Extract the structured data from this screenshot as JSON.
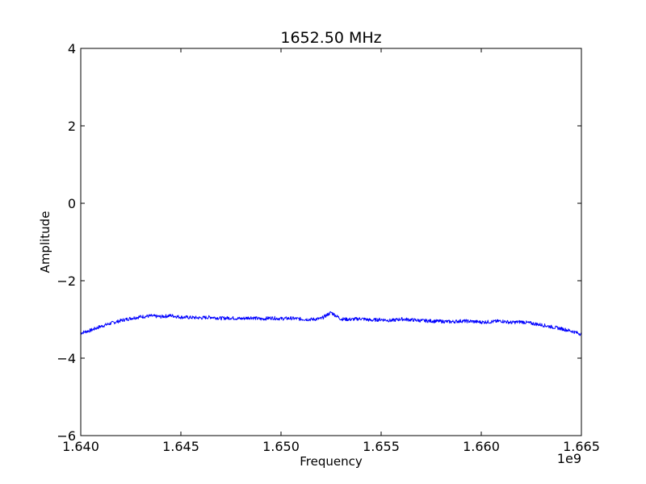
{
  "chart_data": {
    "type": "line",
    "title": "1652.50 MHz",
    "xlabel": "Frequency",
    "ylabel": "Amplitude",
    "x_offset_label": "1e9",
    "xlim": [
      1.64,
      1.665
    ],
    "ylim": [
      -6,
      4
    ],
    "x_ticks": [
      1.64,
      1.645,
      1.65,
      1.655,
      1.66,
      1.665
    ],
    "x_tick_labels": [
      "1.640",
      "1.645",
      "1.650",
      "1.655",
      "1.660",
      "1.665"
    ],
    "y_ticks": [
      4,
      2,
      0,
      -2,
      -4,
      -6
    ],
    "y_tick_labels": [
      "4",
      "2",
      "0",
      "−2",
      "−4",
      "−6"
    ],
    "grid": false,
    "series": [
      {
        "color": "#0000ff",
        "x": [
          1.64,
          1.6405,
          1.641,
          1.6415,
          1.642,
          1.6425,
          1.643,
          1.6435,
          1.644,
          1.6445,
          1.645,
          1.6455,
          1.646,
          1.6465,
          1.647,
          1.6475,
          1.648,
          1.6485,
          1.649,
          1.6495,
          1.65,
          1.6505,
          1.651,
          1.6515,
          1.652,
          1.6525,
          1.653,
          1.6535,
          1.654,
          1.6545,
          1.655,
          1.6555,
          1.656,
          1.6565,
          1.657,
          1.6575,
          1.658,
          1.6585,
          1.659,
          1.6595,
          1.66,
          1.6605,
          1.661,
          1.6615,
          1.662,
          1.6625,
          1.663,
          1.6635,
          1.664,
          1.6645,
          1.665
        ],
        "y": [
          -3.35,
          -3.28,
          -3.18,
          -3.1,
          -3.03,
          -2.97,
          -2.93,
          -2.91,
          -2.93,
          -2.9,
          -2.94,
          -2.95,
          -2.96,
          -2.94,
          -2.97,
          -2.96,
          -2.98,
          -2.95,
          -2.99,
          -2.96,
          -2.98,
          -2.97,
          -2.99,
          -3.0,
          -2.98,
          -2.82,
          -2.99,
          -3.0,
          -2.98,
          -3.02,
          -3.0,
          -3.03,
          -2.99,
          -3.01,
          -3.03,
          -3.04,
          -3.05,
          -3.06,
          -3.04,
          -3.05,
          -3.07,
          -3.06,
          -3.04,
          -3.08,
          -3.06,
          -3.1,
          -3.14,
          -3.19,
          -3.24,
          -3.3,
          -3.38
        ]
      }
    ]
  }
}
